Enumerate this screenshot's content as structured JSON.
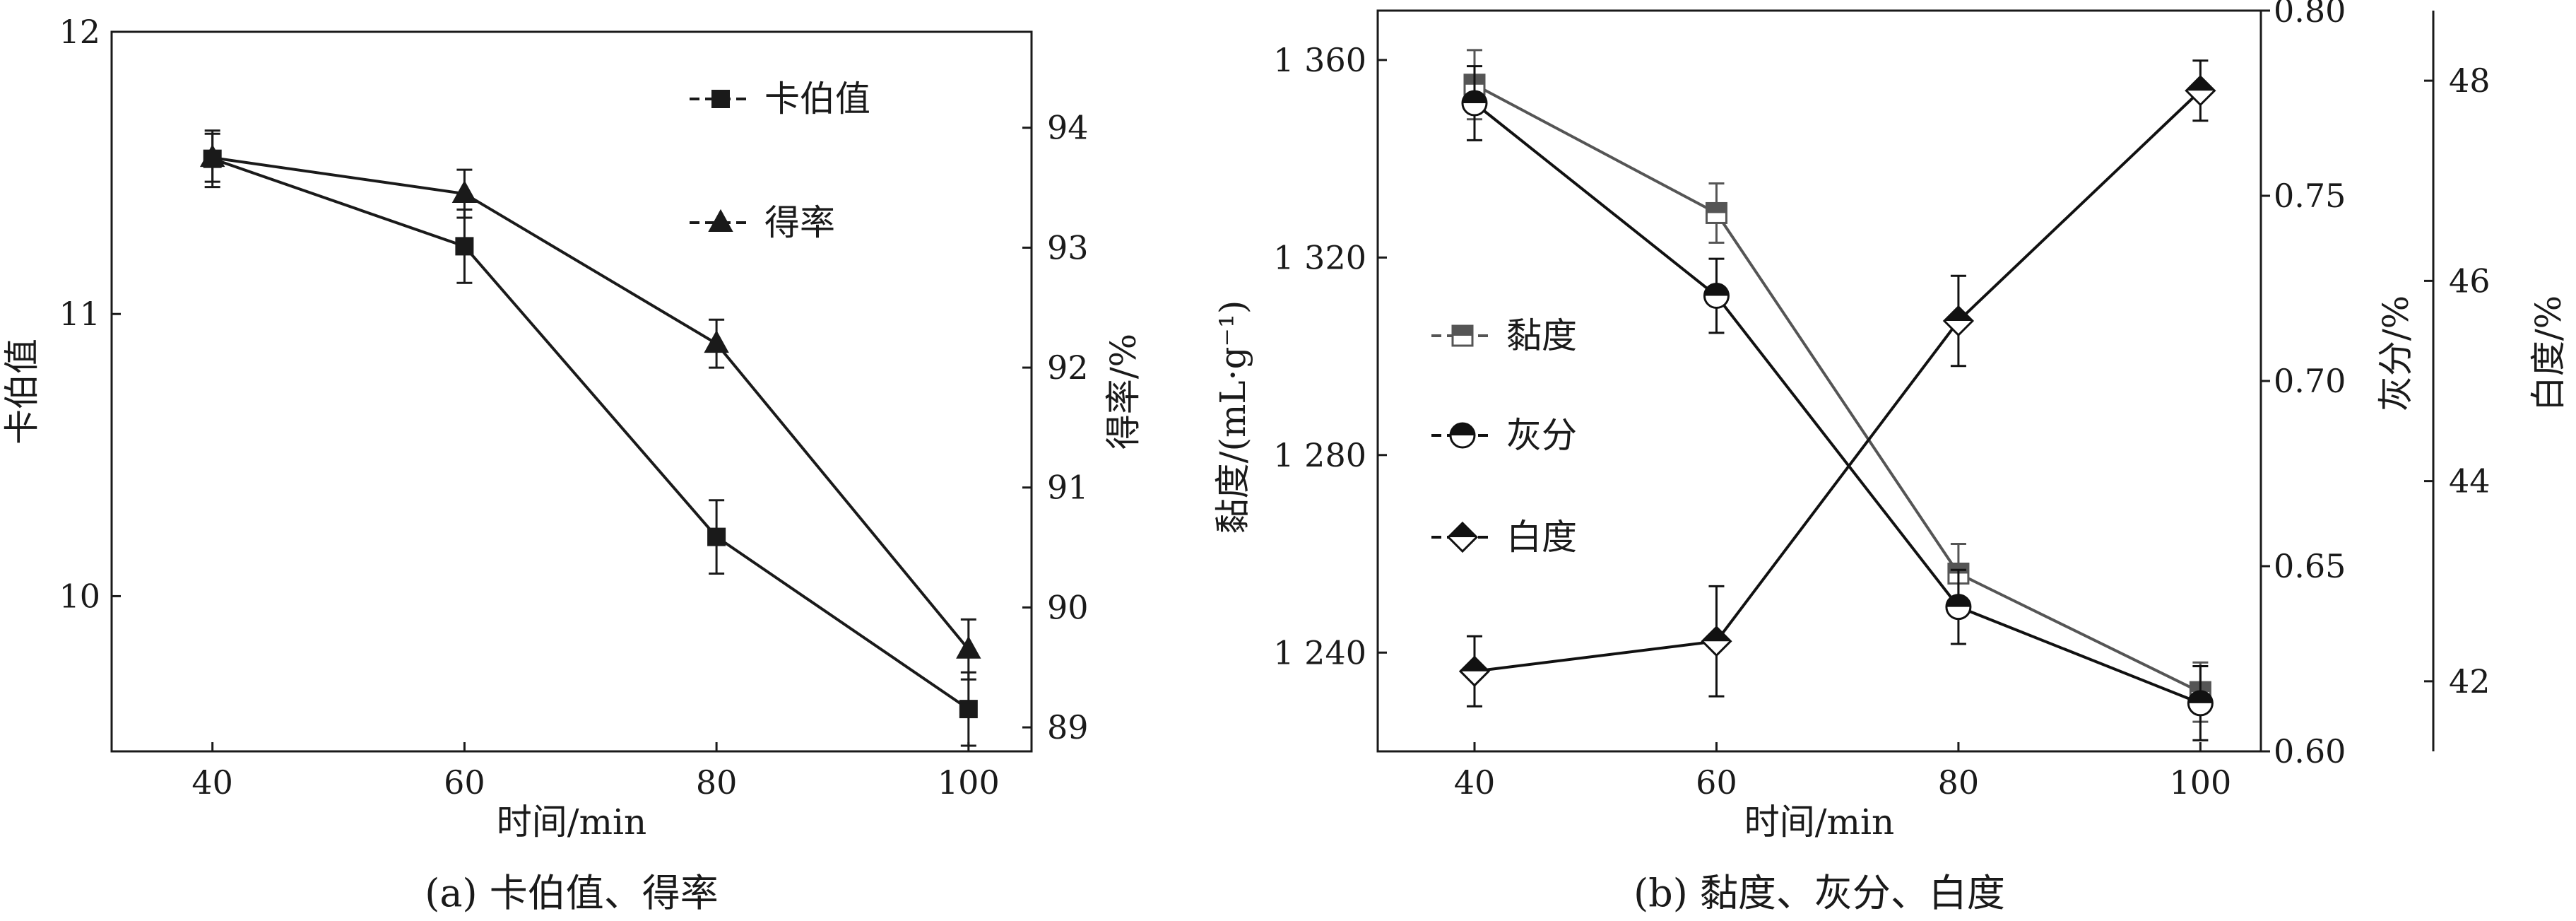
{
  "charts": [
    {
      "caption": "(a) 卡伯值、得率",
      "xlabel": "时间/min",
      "ylabel_left": "卡伯值",
      "ylabel_right": "得率/%"
    },
    {
      "caption": "(b) 黏度、灰分、白度",
      "xlabel": "时间/min",
      "ylabel_left": "黏度/(mL·g⁻¹)",
      "ylabel_right1": "灰分/%",
      "ylabel_right2": "白度/%"
    }
  ],
  "chart_data": [
    {
      "type": "line",
      "title": "(a) 卡伯值、得率",
      "xlabel": "时间/min",
      "x": [
        40,
        60,
        80,
        100
      ],
      "xlim": [
        32,
        105
      ],
      "ylabel": "卡伯值",
      "ylim": [
        9.45,
        12
      ],
      "yticks": [
        10,
        11,
        12
      ],
      "ylabel_right": "得率/%",
      "ylim_right": [
        88.8,
        94.8
      ],
      "yticks_right": [
        89,
        90,
        91,
        92,
        93,
        94
      ],
      "legend_position": "top-right",
      "series": [
        {
          "name": "卡伯值",
          "axis": "left",
          "marker": "square",
          "color": "#1a1a1a",
          "values": [
            11.55,
            11.24,
            10.21,
            9.6
          ],
          "errors": [
            0.1,
            0.13,
            0.13,
            0.13
          ]
        },
        {
          "name": "得率",
          "axis": "right",
          "marker": "triangle",
          "color": "#1a1a1a",
          "values": [
            93.75,
            93.45,
            92.2,
            89.65
          ],
          "errors": [
            0.2,
            0.2,
            0.2,
            0.25
          ]
        }
      ]
    },
    {
      "type": "line",
      "title": "(b) 黏度、灰分、白度",
      "xlabel": "时间/min",
      "x": [
        40,
        60,
        80,
        100
      ],
      "xlim": [
        32,
        105
      ],
      "ylabel": "黏度/(mL·g⁻¹)",
      "ylim": [
        1220,
        1370
      ],
      "yticks": [
        1240,
        1280,
        1320,
        1360
      ],
      "yticks_labels": [
        "1 240",
        "1 280",
        "1 320",
        "1 360"
      ],
      "ylabel_right": "灰分/%",
      "ylim_right": [
        0.6,
        0.8
      ],
      "yticks_right": [
        0.6,
        0.65,
        0.7,
        0.75,
        0.8
      ],
      "yticks_right_labels": [
        "0.60",
        "0.65",
        "0.70",
        "0.75",
        "0.80"
      ],
      "ylabel_right2": "白度/%",
      "ylim_right2": [
        41.3,
        48.7
      ],
      "yticks_right2": [
        42,
        44,
        46,
        48
      ],
      "legend_position": "center-left",
      "series": [
        {
          "name": "黏度",
          "axis": "left",
          "marker": "square-half",
          "color": "#555555",
          "values": [
            1355,
            1329,
            1256,
            1232
          ],
          "errors": [
            7,
            6,
            6,
            6
          ]
        },
        {
          "name": "灰分",
          "axis": "right",
          "marker": "circle-half",
          "color": "#111111",
          "values": [
            0.775,
            0.723,
            0.639,
            0.613
          ],
          "errors": [
            0.01,
            0.01,
            0.01,
            0.01
          ]
        },
        {
          "name": "白度",
          "axis": "right2",
          "marker": "diamond-half",
          "color": "#111111",
          "values": [
            42.1,
            42.4,
            45.6,
            47.9
          ],
          "errors": [
            0.35,
            0.55,
            0.45,
            0.3
          ]
        }
      ]
    }
  ]
}
